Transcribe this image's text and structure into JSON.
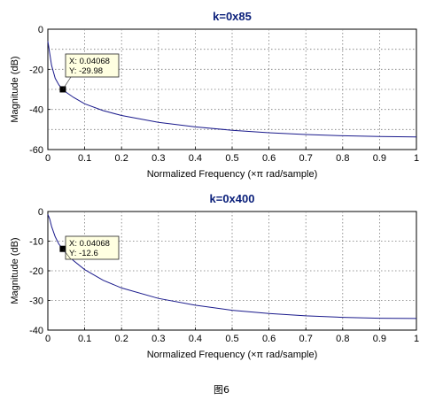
{
  "chart_data": [
    {
      "type": "line",
      "title": "k=0x85",
      "xlabel": "Normalized Frequency  (×π rad/sample)",
      "ylabel": "Magnitude (dB)",
      "xlim": [
        0,
        1
      ],
      "ylim": [
        -60,
        0
      ],
      "xticks": [
        "0",
        "0.1",
        "0.2",
        "0.3",
        "0.4",
        "0.5",
        "0.6",
        "0.7",
        "0.8",
        "0.9",
        "1"
      ],
      "yticks": [
        "0",
        "-20",
        "-40",
        "-60"
      ],
      "yticks_minor_grid": [
        -10,
        -30,
        -50
      ],
      "grid": true,
      "series": [
        {
          "x": [
            0.0,
            0.005,
            0.01,
            0.02,
            0.03,
            0.04068,
            0.05,
            0.07,
            0.1,
            0.15,
            0.2,
            0.3,
            0.4,
            0.5,
            0.6,
            0.7,
            0.8,
            0.9,
            1.0
          ],
          "values": [
            -6,
            -12,
            -18,
            -24.5,
            -27.8,
            -29.98,
            -31.5,
            -34,
            -37.2,
            -40.6,
            -43,
            -46.4,
            -48.7,
            -50.4,
            -51.6,
            -52.5,
            -53.1,
            -53.5,
            -53.7
          ]
        }
      ],
      "datatip": {
        "x_text": "X: 0.04068",
        "y_text": "Y: -29.98",
        "x": 0.04068,
        "y": -29.98
      }
    },
    {
      "type": "line",
      "title": "k=0x400",
      "xlabel": "Normalized Frequency  (×π rad/sample)",
      "ylabel": "Magnitude (dB)",
      "xlim": [
        0,
        1
      ],
      "ylim": [
        -40,
        0
      ],
      "xticks": [
        "0",
        "0.1",
        "0.2",
        "0.3",
        "0.4",
        "0.5",
        "0.6",
        "0.7",
        "0.8",
        "0.9",
        "1"
      ],
      "yticks": [
        "0",
        "-10",
        "-20",
        "-30",
        "-40"
      ],
      "yticks_minor_grid": [],
      "grid": true,
      "series": [
        {
          "x": [
            0.0,
            0.005,
            0.01,
            0.02,
            0.03,
            0.04068,
            0.05,
            0.07,
            0.1,
            0.15,
            0.2,
            0.3,
            0.4,
            0.5,
            0.6,
            0.7,
            0.8,
            0.9,
            1.0
          ],
          "values": [
            -1,
            -2.5,
            -5,
            -8.5,
            -11,
            -12.6,
            -14.2,
            -16.6,
            -19.6,
            -23.2,
            -25.8,
            -29.3,
            -31.6,
            -33.3,
            -34.4,
            -35.2,
            -35.7,
            -36,
            -36.1
          ]
        }
      ],
      "datatip": {
        "x_text": "X: 0.04068",
        "y_text": "Y: -12.6",
        "x": 0.04068,
        "y": -12.6
      }
    }
  ],
  "caption": "图6"
}
